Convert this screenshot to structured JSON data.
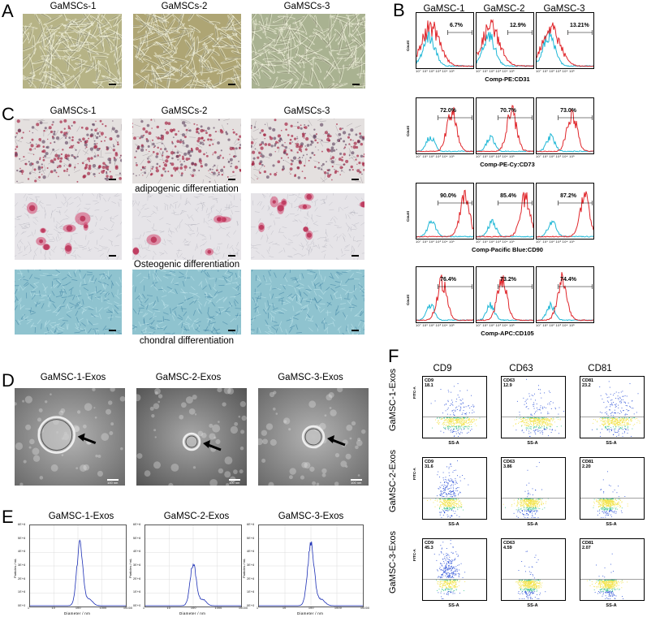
{
  "panels": {
    "A": {
      "label": "A",
      "titles": [
        "GaMSCs-1",
        "GaMSCs-2",
        "GaMSCs-3"
      ]
    },
    "B": {
      "label": "B",
      "titles": [
        "GaMSC-1",
        "GaMSC-2",
        "GaMSC-3"
      ],
      "rows": [
        {
          "marker": "Comp-PE:CD31",
          "pcts": [
            "6.7%",
            "12.9%",
            "13.21%"
          ],
          "count_label": "Count"
        },
        {
          "marker": "Comp-PE-Cy:CD73",
          "pcts": [
            "72.0%",
            "70.7%",
            "73.0%"
          ],
          "count_label": "Count"
        },
        {
          "marker": "Comp-Pacific Blue:CD90",
          "pcts": [
            "90.0%",
            "85.4%",
            "87.2%"
          ],
          "count_label": "Count"
        },
        {
          "marker": "Comp-APC:CD105",
          "pcts": [
            "76.4%",
            "73.2%",
            "74.4%"
          ],
          "count_label": "Count"
        }
      ],
      "xticks": "10° 10¹ 10² 10³ 10⁴ 10⁵",
      "colors": {
        "sample": "#e0262b",
        "control": "#1fb7d6"
      }
    },
    "C": {
      "label": "C",
      "titles": [
        "GaMSCs-1",
        "GaMSCs-2",
        "GaMSCs-3"
      ],
      "captions": [
        "adipogenic differentiation",
        "Osteogenic differentiation",
        "chondral differentiation"
      ]
    },
    "D": {
      "label": "D",
      "titles": [
        "GaMSC-1-Exos",
        "GaMSC-2-Exos",
        "GaMSC-3-Exos"
      ],
      "scale_texts": [
        "100 nm",
        "100 nm",
        "100 nm"
      ]
    },
    "E": {
      "label": "E",
      "titles": [
        "GaMSC-1-Exos",
        "GaMSC-2-Exos",
        "GaMSC-3-Exos"
      ],
      "xlabel": "Diameter / nm",
      "ylabel": "Particles / mL",
      "yticks": [
        "6E+6",
        "5E+6",
        "4E+6",
        "3E+6",
        "2E+6",
        "1E+6",
        "0E+0"
      ],
      "xticks": [
        "1",
        "10",
        "100",
        "1000",
        "10000"
      ],
      "color": "#1c2fb5"
    },
    "F": {
      "label": "F",
      "col_titles": [
        "CD9",
        "CD63",
        "CD81"
      ],
      "row_labels": [
        "GaMSC-1-Exos",
        "GaMSC-2-Exos",
        "GaMSC-3-Exos"
      ],
      "gates": [
        [
          {
            "name": "CD9",
            "val": "18.1"
          },
          {
            "name": "CD63",
            "val": "12.9"
          },
          {
            "name": "CD81",
            "val": "23.2"
          }
        ],
        [
          {
            "name": "CD9",
            "val": "31.6"
          },
          {
            "name": "CD63",
            "val": "3.86"
          },
          {
            "name": "CD81",
            "val": "2.20"
          }
        ],
        [
          {
            "name": "CD9",
            "val": "45.3"
          },
          {
            "name": "CD63",
            "val": "4.59"
          },
          {
            "name": "CD81",
            "val": "2.07"
          }
        ]
      ],
      "ylabel": "FITC-A",
      "xlabel": "SS-A"
    }
  }
}
